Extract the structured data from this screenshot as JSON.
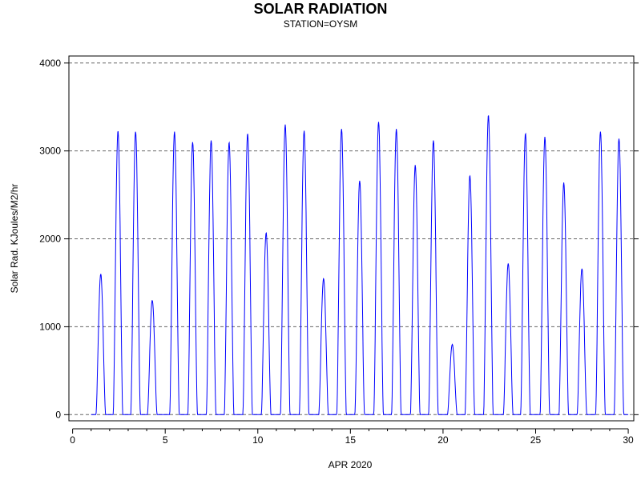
{
  "chart_data": {
    "type": "line",
    "title": "SOLAR RADIATION",
    "subtitle": "STATION=OYSM",
    "xlabel": "APR 2020",
    "ylabel": "Solar Rad. KJoules/M2/hr",
    "xlim": [
      -0.2,
      30.3
    ],
    "ylim": [
      -70,
      4080
    ],
    "xticks": [
      0,
      5,
      10,
      15,
      20,
      25,
      30
    ],
    "yticks": [
      0,
      1000,
      2000,
      3000,
      4000
    ],
    "grid": "horizontal dashed",
    "line_color": "#0000ff",
    "series": [
      {
        "name": "Solar Radiation",
        "days": [
          {
            "day": 1,
            "peak": 1600,
            "noon_offset": 0.02
          },
          {
            "day": 2,
            "peak": 3230,
            "noon_offset": -0.05
          },
          {
            "day": 3,
            "peak": 3220,
            "noon_offset": -0.1
          },
          {
            "day": 4,
            "peak": 1300,
            "noon_offset": -0.2
          },
          {
            "day": 5,
            "peak": 3220,
            "noon_offset": 0.0
          },
          {
            "day": 6,
            "peak": 3100,
            "noon_offset": -0.02
          },
          {
            "day": 7,
            "peak": 3120,
            "noon_offset": -0.02
          },
          {
            "day": 8,
            "peak": 3100,
            "noon_offset": -0.05
          },
          {
            "day": 9,
            "peak": 3200,
            "noon_offset": -0.05
          },
          {
            "day": 10,
            "peak": 2070,
            "noon_offset": -0.05
          },
          {
            "day": 11,
            "peak": 3300,
            "noon_offset": -0.02
          },
          {
            "day": 12,
            "peak": 3230,
            "noon_offset": 0.0
          },
          {
            "day": 13,
            "peak": 1550,
            "noon_offset": 0.05
          },
          {
            "day": 14,
            "peak": 3250,
            "noon_offset": 0.02
          },
          {
            "day": 15,
            "peak": 2660,
            "noon_offset": 0.0
          },
          {
            "day": 16,
            "peak": 3330,
            "noon_offset": 0.02
          },
          {
            "day": 17,
            "peak": 3250,
            "noon_offset": -0.02
          },
          {
            "day": 18,
            "peak": 2840,
            "noon_offset": 0.0
          },
          {
            "day": 19,
            "peak": 3120,
            "noon_offset": -0.02
          },
          {
            "day": 20,
            "peak": 800,
            "noon_offset": 0.0
          },
          {
            "day": 21,
            "peak": 2720,
            "noon_offset": -0.05
          },
          {
            "day": 22,
            "peak": 3410,
            "noon_offset": -0.05
          },
          {
            "day": 23,
            "peak": 1720,
            "noon_offset": 0.02
          },
          {
            "day": 24,
            "peak": 3200,
            "noon_offset": -0.05
          },
          {
            "day": 25,
            "peak": 3160,
            "noon_offset": 0.0
          },
          {
            "day": 26,
            "peak": 2640,
            "noon_offset": 0.02
          },
          {
            "day": 27,
            "peak": 1660,
            "noon_offset": 0.0
          },
          {
            "day": 28,
            "peak": 3220,
            "noon_offset": 0.0
          },
          {
            "day": 29,
            "peak": 3140,
            "noon_offset": 0.0
          }
        ]
      }
    ]
  }
}
